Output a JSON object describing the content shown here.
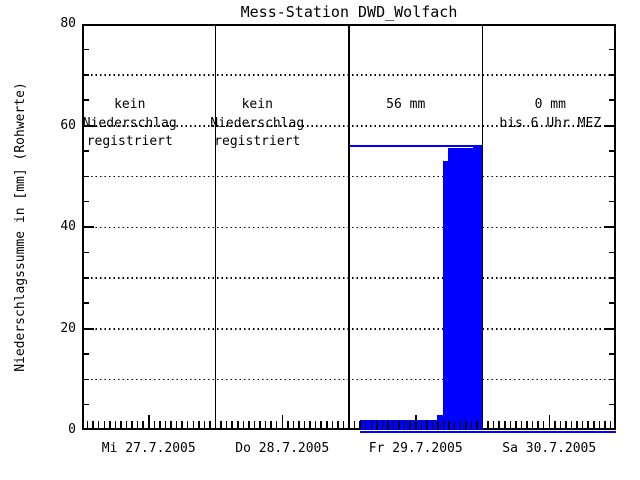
{
  "chart_data": {
    "type": "area",
    "title": "Mess-Station DWD_Wolfach",
    "ylabel": "Niederschlagssumme in [mm] (Rohwerte)",
    "ylim": [
      0,
      80
    ],
    "yticks_major": [
      0,
      20,
      40,
      60,
      80
    ],
    "ytick_minor_step": 5,
    "ygrid_dotted": [
      10,
      20,
      30,
      40,
      50,
      60,
      70
    ],
    "grid_style": "dotted",
    "x_hours_per_day": 24,
    "xtick_minor": "hourly",
    "xtick_medium": "noon",
    "series_color": "#0000ff",
    "axis_color": "#000000",
    "background_color": "#ffffff",
    "days": [
      {
        "label": "Mi 27.7.2005",
        "annotation": [
          "kein",
          "Niederschlag",
          "registriert"
        ],
        "day_total_line_mm": null,
        "baseline_blue_from_hour": null,
        "cumulative_steps": []
      },
      {
        "label": "Do 28.7.2005",
        "annotation": [
          "kein",
          "Niederschlag",
          "registriert"
        ],
        "day_total_line_mm": null,
        "baseline_blue_from_hour": null,
        "cumulative_steps": []
      },
      {
        "label": "Fr 29.7.2005",
        "annotation": [
          "56 mm"
        ],
        "day_total_line_mm": 56,
        "baseline_blue_from_hour": 2,
        "cumulative_steps": [
          {
            "from_hour": 2,
            "to_hour": 15.8,
            "mm": 2
          },
          {
            "from_hour": 15.8,
            "to_hour": 16.9,
            "mm": 3
          },
          {
            "from_hour": 16.9,
            "to_hour": 17.8,
            "mm": 53
          },
          {
            "from_hour": 17.8,
            "to_hour": 22.3,
            "mm": 55.5
          },
          {
            "from_hour": 22.3,
            "to_hour": 24,
            "mm": 56
          }
        ]
      },
      {
        "label": "Sa 30.7.2005",
        "annotation": [
          "0 mm",
          "bis 6 Uhr MEZ"
        ],
        "day_total_line_mm": null,
        "baseline_blue_from_hour": 0,
        "cumulative_steps": []
      }
    ]
  }
}
